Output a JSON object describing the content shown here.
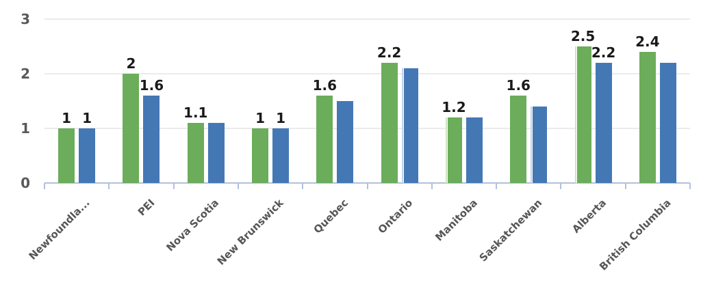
{
  "chart_data": {
    "type": "bar",
    "title": "",
    "categories": [
      "Newfoundla...",
      "PEI",
      "Nova Scotia",
      "New Brunswick",
      "Quebec",
      "Ontario",
      "Manitoba",
      "Saskatchewan",
      "Alberta",
      "British Columbia"
    ],
    "series": [
      {
        "name": "green",
        "color": "#6BAD5A",
        "pale_color": "#CDE4C0",
        "values": [
          1,
          2,
          1.1,
          1,
          1.6,
          2.2,
          1.2,
          1.6,
          2.5,
          2.4
        ],
        "labels": [
          "1",
          "2",
          "1.1",
          "1",
          "1.6",
          "2.2",
          "1.2",
          "1.6",
          "2.5",
          "2.4"
        ],
        "pale_left_edge": [
          false,
          false,
          false,
          false,
          false,
          false,
          true,
          false,
          true,
          false
        ]
      },
      {
        "name": "blue",
        "color": "#4478B5",
        "pale_color": "#C2D3EA",
        "values": [
          1,
          1.6,
          1.1,
          1,
          1.5,
          2.1,
          1.2,
          1.4,
          2.2,
          2.2
        ],
        "labels": [
          "1",
          "1.6",
          null,
          "1",
          null,
          null,
          null,
          null,
          "2.2",
          null
        ],
        "pale_left_edge": [
          false,
          false,
          false,
          false,
          false,
          true,
          false,
          true,
          false,
          false
        ]
      }
    ],
    "y_axis": {
      "min": 0,
      "max": 3,
      "tick_labels": [
        "0",
        "1",
        "2",
        "3"
      ]
    },
    "x_axis": {
      "label_rotation_deg": -45
    },
    "grid": true,
    "legend": "none"
  },
  "colors": {
    "background": "#FFFFFF",
    "gridline": "#EBEBEB",
    "axis_line": "#B3C0DC",
    "tick": "#B3C0DC",
    "y_label_text": "#595959",
    "x_label_text": "#565659",
    "data_label_text": "#1A1A1A"
  }
}
